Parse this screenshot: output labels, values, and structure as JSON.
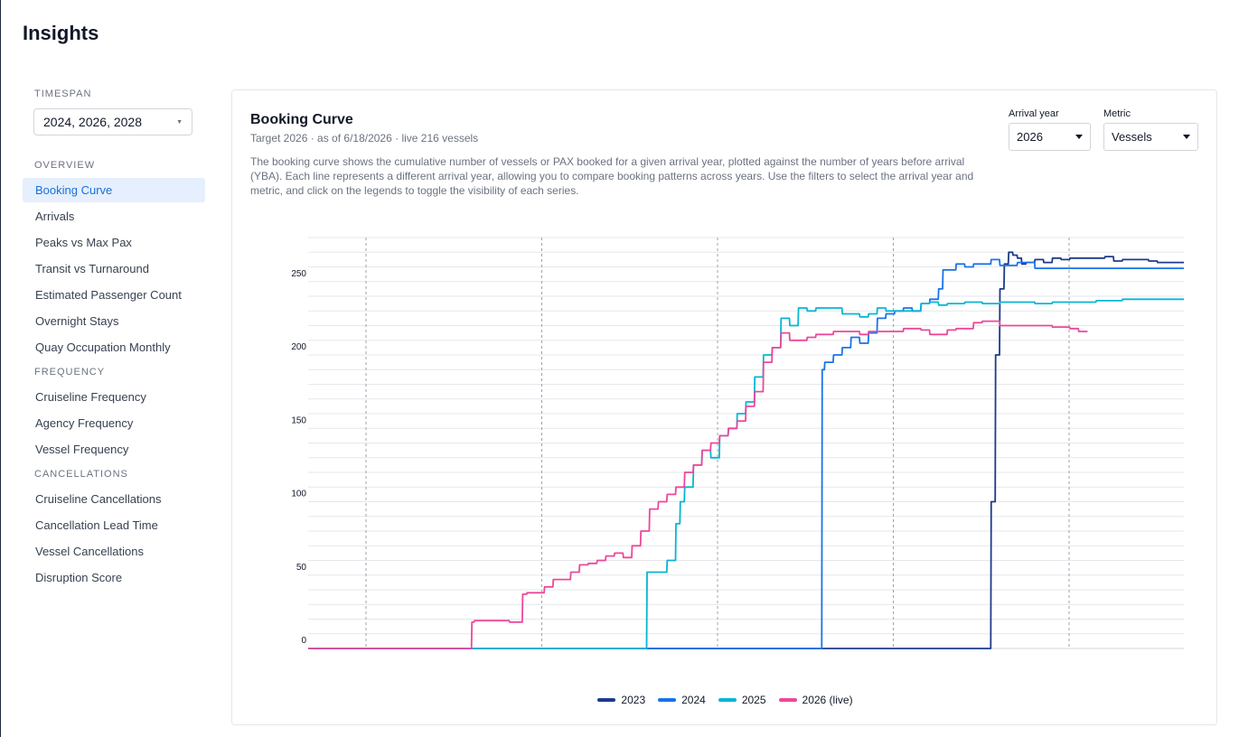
{
  "page": {
    "title": "Insights"
  },
  "sidebar": {
    "timespan_label": "TIMESPAN",
    "timespan_value": "2024, 2026, 2028",
    "groups": [
      {
        "label": "OVERVIEW",
        "items": [
          "Booking Curve",
          "Arrivals",
          "Peaks vs Max Pax",
          "Transit vs Turnaround",
          "Estimated Passenger Count",
          "Overnight Stays",
          "Quay Occupation Monthly"
        ]
      },
      {
        "label": "FREQUENCY",
        "items": [
          "Cruiseline Frequency",
          "Agency Frequency",
          "Vessel Frequency"
        ]
      },
      {
        "label": "CANCELLATIONS",
        "items": [
          "Cruiseline Cancellations",
          "Cancellation Lead Time",
          "Vessel Cancellations",
          "Disruption Score"
        ]
      }
    ],
    "active_item": "Booking Curve"
  },
  "card": {
    "title": "Booking Curve",
    "subtitle": "Target 2026 · as of 6/18/2026 · live 216 vessels",
    "description": "The booking curve shows the cumulative number of vessels or PAX booked for a given arrival year, plotted against the number of years before arrival (YBA). Each line represents a different arrival year, allowing you to compare booking patterns across years. Use the filters to select the arrival year and metric, and click on the legends to toggle the visibility of each series.",
    "filters": {
      "arrival_year_label": "Arrival year",
      "arrival_year_value": "2026",
      "metric_label": "Metric",
      "metric_value": "Vessels"
    }
  },
  "chart_data": {
    "type": "line",
    "title": "",
    "xlabel": "",
    "ylabel": "",
    "ylim": [
      0,
      280
    ],
    "yticks": [
      0,
      50,
      100,
      150,
      200,
      250
    ],
    "x_gridlines": 5,
    "grid": true,
    "legend_position": "bottom",
    "series": [
      {
        "name": "2023",
        "color": "#1e3a8a",
        "points": [
          [
            0,
            0
          ],
          [
            0.775,
            0
          ],
          [
            0.78,
            100
          ],
          [
            0.785,
            200
          ],
          [
            0.79,
            245
          ],
          [
            0.795,
            262
          ],
          [
            0.8,
            270
          ],
          [
            0.805,
            268
          ],
          [
            0.81,
            266
          ],
          [
            0.815,
            262
          ],
          [
            0.82,
            263
          ],
          [
            0.83,
            265
          ],
          [
            0.84,
            263
          ],
          [
            0.85,
            266
          ],
          [
            0.86,
            265
          ],
          [
            0.87,
            266
          ],
          [
            0.88,
            266
          ],
          [
            0.9,
            266
          ],
          [
            0.91,
            267
          ],
          [
            0.92,
            264
          ],
          [
            0.93,
            265
          ],
          [
            0.95,
            265
          ],
          [
            0.96,
            264
          ],
          [
            0.97,
            263
          ],
          [
            1.0,
            263
          ]
        ]
      },
      {
        "name": "2024",
        "color": "#1a73e8",
        "points": [
          [
            0,
            0
          ],
          [
            0.583,
            0
          ],
          [
            0.587,
            190
          ],
          [
            0.59,
            195
          ],
          [
            0.6,
            200
          ],
          [
            0.61,
            205
          ],
          [
            0.62,
            212
          ],
          [
            0.63,
            208
          ],
          [
            0.64,
            215
          ],
          [
            0.645,
            215
          ],
          [
            0.65,
            225
          ],
          [
            0.66,
            228
          ],
          [
            0.67,
            230
          ],
          [
            0.68,
            232
          ],
          [
            0.69,
            230
          ],
          [
            0.7,
            235
          ],
          [
            0.71,
            238
          ],
          [
            0.715,
            238
          ],
          [
            0.72,
            245
          ],
          [
            0.725,
            258
          ],
          [
            0.73,
            258
          ],
          [
            0.74,
            262
          ],
          [
            0.75,
            260
          ],
          [
            0.76,
            262
          ],
          [
            0.77,
            262
          ],
          [
            0.78,
            265
          ],
          [
            0.79,
            261
          ],
          [
            0.8,
            261
          ],
          [
            0.81,
            263
          ],
          [
            0.82,
            263
          ],
          [
            0.83,
            259
          ],
          [
            0.85,
            259
          ],
          [
            0.87,
            259
          ],
          [
            0.9,
            259
          ],
          [
            0.93,
            259
          ],
          [
            0.96,
            259
          ],
          [
            1.0,
            259
          ]
        ]
      },
      {
        "name": "2025",
        "color": "#06b6d4",
        "points": [
          [
            0,
            0
          ],
          [
            0.383,
            0
          ],
          [
            0.387,
            52
          ],
          [
            0.39,
            52
          ],
          [
            0.4,
            52
          ],
          [
            0.41,
            60
          ],
          [
            0.42,
            85
          ],
          [
            0.425,
            100
          ],
          [
            0.43,
            110
          ],
          [
            0.44,
            125
          ],
          [
            0.45,
            135
          ],
          [
            0.46,
            130
          ],
          [
            0.47,
            145
          ],
          [
            0.48,
            150
          ],
          [
            0.49,
            160
          ],
          [
            0.5,
            168
          ],
          [
            0.51,
            185
          ],
          [
            0.52,
            200
          ],
          [
            0.53,
            205
          ],
          [
            0.54,
            225
          ],
          [
            0.55,
            220
          ],
          [
            0.56,
            232
          ],
          [
            0.57,
            230
          ],
          [
            0.58,
            232
          ],
          [
            0.59,
            232
          ],
          [
            0.6,
            232
          ],
          [
            0.61,
            228
          ],
          [
            0.62,
            228
          ],
          [
            0.63,
            226
          ],
          [
            0.64,
            228
          ],
          [
            0.65,
            232
          ],
          [
            0.66,
            230
          ],
          [
            0.67,
            230
          ],
          [
            0.69,
            230
          ],
          [
            0.7,
            235
          ],
          [
            0.71,
            236
          ],
          [
            0.72,
            234
          ],
          [
            0.73,
            235
          ],
          [
            0.75,
            236
          ],
          [
            0.77,
            235
          ],
          [
            0.79,
            236
          ],
          [
            0.81,
            236
          ],
          [
            0.83,
            235
          ],
          [
            0.85,
            236
          ],
          [
            0.87,
            236
          ],
          [
            0.9,
            237
          ],
          [
            0.93,
            238
          ],
          [
            0.96,
            238
          ],
          [
            1.0,
            238
          ]
        ]
      },
      {
        "name": "2026 (live)",
        "color": "#ec4899",
        "points": [
          [
            0,
            0
          ],
          [
            0.183,
            0
          ],
          [
            0.187,
            18
          ],
          [
            0.19,
            19
          ],
          [
            0.21,
            19
          ],
          [
            0.22,
            19
          ],
          [
            0.23,
            18
          ],
          [
            0.24,
            18
          ],
          [
            0.245,
            37
          ],
          [
            0.25,
            38
          ],
          [
            0.26,
            38
          ],
          [
            0.27,
            42
          ],
          [
            0.28,
            47
          ],
          [
            0.29,
            47
          ],
          [
            0.3,
            52
          ],
          [
            0.31,
            57
          ],
          [
            0.32,
            58
          ],
          [
            0.33,
            60
          ],
          [
            0.34,
            63
          ],
          [
            0.35,
            65
          ],
          [
            0.36,
            62
          ],
          [
            0.37,
            70
          ],
          [
            0.38,
            80
          ],
          [
            0.39,
            95
          ],
          [
            0.4,
            100
          ],
          [
            0.41,
            105
          ],
          [
            0.42,
            110
          ],
          [
            0.43,
            120
          ],
          [
            0.44,
            125
          ],
          [
            0.45,
            135
          ],
          [
            0.46,
            140
          ],
          [
            0.47,
            145
          ],
          [
            0.48,
            150
          ],
          [
            0.49,
            155
          ],
          [
            0.5,
            165
          ],
          [
            0.51,
            175
          ],
          [
            0.52,
            195
          ],
          [
            0.53,
            205
          ],
          [
            0.54,
            215
          ],
          [
            0.55,
            210
          ],
          [
            0.56,
            210
          ],
          [
            0.57,
            212
          ],
          [
            0.58,
            214
          ],
          [
            0.59,
            214
          ],
          [
            0.6,
            216
          ],
          [
            0.61,
            216
          ],
          [
            0.62,
            216
          ],
          [
            0.63,
            214
          ],
          [
            0.64,
            216
          ],
          [
            0.66,
            216
          ],
          [
            0.67,
            216
          ],
          [
            0.68,
            218
          ],
          [
            0.7,
            217
          ],
          [
            0.71,
            214
          ],
          [
            0.73,
            217
          ],
          [
            0.74,
            218
          ],
          [
            0.75,
            218
          ],
          [
            0.76,
            222
          ],
          [
            0.77,
            223
          ],
          [
            0.78,
            223
          ],
          [
            0.79,
            220
          ],
          [
            0.8,
            220
          ],
          [
            0.81,
            220
          ],
          [
            0.83,
            220
          ],
          [
            0.85,
            219
          ],
          [
            0.87,
            218
          ],
          [
            0.88,
            216
          ],
          [
            0.89,
            216
          ]
        ]
      }
    ]
  }
}
